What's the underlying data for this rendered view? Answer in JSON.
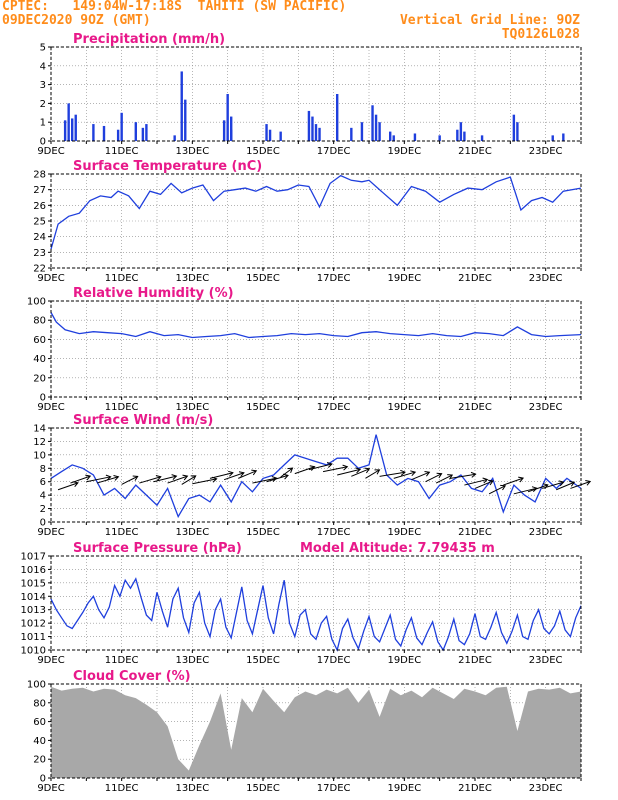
{
  "header": {
    "line1_left": "CPTEC:   149:04W-17:18S  TAHITI (SW PACIFIC)",
    "line2_left": "09DEC2020 9OZ (GMT)",
    "line2_right": "Vertical Grid Line: 9OZ",
    "line3_right": "TQ0126L028"
  },
  "colors": {
    "line": "#1f3fdd",
    "bar": "#1f3fdd",
    "cloud": "#a8a8a8",
    "title": "#e8198a",
    "header": "#ff8c1a"
  },
  "chart_data": [
    {
      "id": "precip",
      "type": "bar",
      "title": "Precipitation (mm/h)",
      "x_ticks": [
        "9DEC",
        "11DEC",
        "13DEC",
        "15DEC",
        "17DEC",
        "19DEC",
        "21DEC",
        "23DEC"
      ],
      "ylim": [
        0,
        5
      ],
      "y_ticks": [
        "0",
        "1",
        "2",
        "3",
        "4",
        "5"
      ],
      "values": [
        [
          0.4,
          1.1
        ],
        [
          0.5,
          2.0
        ],
        [
          0.6,
          1.2
        ],
        [
          0.7,
          1.4
        ],
        [
          1.2,
          0.9
        ],
        [
          1.5,
          0.8
        ],
        [
          1.9,
          0.6
        ],
        [
          2.0,
          1.5
        ],
        [
          2.4,
          1.0
        ],
        [
          2.6,
          0.7
        ],
        [
          2.7,
          0.9
        ],
        [
          3.5,
          0.3
        ],
        [
          3.7,
          3.7
        ],
        [
          3.8,
          2.2
        ],
        [
          4.9,
          1.1
        ],
        [
          5.0,
          2.5
        ],
        [
          5.1,
          1.3
        ],
        [
          5.1,
          0.6
        ],
        [
          6.1,
          0.9
        ],
        [
          6.2,
          0.6
        ],
        [
          6.5,
          0.5
        ],
        [
          7.3,
          1.6
        ],
        [
          7.4,
          1.3
        ],
        [
          7.5,
          0.9
        ],
        [
          7.6,
          0.7
        ],
        [
          8.1,
          2.5
        ],
        [
          8.5,
          0.7
        ],
        [
          8.8,
          1.0
        ],
        [
          9.1,
          1.9
        ],
        [
          9.2,
          1.4
        ],
        [
          9.3,
          1.0
        ],
        [
          9.6,
          0.5
        ],
        [
          9.7,
          0.3
        ],
        [
          10.3,
          0.4
        ],
        [
          11.0,
          0.3
        ],
        [
          11.5,
          0.6
        ],
        [
          11.6,
          1.0
        ],
        [
          11.7,
          0.5
        ],
        [
          12.2,
          0.3
        ],
        [
          13.1,
          1.4
        ],
        [
          13.2,
          1.0
        ],
        [
          14.2,
          0.3
        ],
        [
          14.5,
          0.4
        ]
      ]
    },
    {
      "id": "temp",
      "type": "line",
      "title": "Surface Temperature (nC)",
      "x_ticks": [
        "9DEC",
        "11DEC",
        "13DEC",
        "15DEC",
        "17DEC",
        "19DEC",
        "21DEC",
        "23DEC"
      ],
      "ylim": [
        22,
        28
      ],
      "y_ticks": [
        "22",
        "23",
        "24",
        "25",
        "26",
        "27",
        "28"
      ],
      "x": [
        0,
        0.2,
        0.5,
        0.8,
        1.1,
        1.4,
        1.7,
        1.9,
        2.2,
        2.5,
        2.8,
        3.1,
        3.4,
        3.7,
        4.0,
        4.3,
        4.6,
        4.9,
        5.2,
        5.5,
        5.8,
        6.1,
        6.4,
        6.7,
        7.0,
        7.3,
        7.6,
        7.9,
        8.2,
        8.5,
        8.8,
        9.0,
        9.4,
        9.8,
        10.2,
        10.6,
        11.0,
        11.4,
        11.8,
        12.2,
        12.6,
        13.0,
        13.3,
        13.6,
        13.9,
        14.2,
        14.5,
        15.0
      ],
      "values": [
        23.2,
        24.8,
        25.3,
        25.5,
        26.3,
        26.6,
        26.5,
        26.9,
        26.6,
        25.8,
        26.9,
        26.7,
        27.4,
        26.8,
        27.1,
        27.3,
        26.3,
        26.9,
        27.0,
        27.1,
        26.9,
        27.2,
        26.9,
        27.0,
        27.3,
        27.2,
        25.9,
        27.4,
        27.9,
        27.6,
        27.5,
        27.6,
        26.8,
        26.0,
        27.2,
        26.9,
        26.2,
        26.7,
        27.1,
        27.0,
        27.5,
        27.8,
        25.7,
        26.3,
        26.5,
        26.2,
        26.9,
        27.1
      ]
    },
    {
      "id": "rh",
      "type": "line",
      "title": "Relative Humidity (%)",
      "x_ticks": [
        "9DEC",
        "11DEC",
        "13DEC",
        "15DEC",
        "17DEC",
        "19DEC",
        "21DEC",
        "23DEC"
      ],
      "ylim": [
        0,
        100
      ],
      "y_ticks": [
        "0",
        "20",
        "40",
        "60",
        "80",
        "100"
      ],
      "x": [
        0,
        0.15,
        0.4,
        0.8,
        1.2,
        1.6,
        2.0,
        2.4,
        2.8,
        3.2,
        3.6,
        4.0,
        4.4,
        4.8,
        5.2,
        5.6,
        6.0,
        6.4,
        6.8,
        7.2,
        7.6,
        8.0,
        8.4,
        8.8,
        9.2,
        9.6,
        10.0,
        10.4,
        10.8,
        11.2,
        11.6,
        12.0,
        12.4,
        12.8,
        13.2,
        13.6,
        14.0,
        14.4,
        15.0
      ],
      "values": [
        88,
        78,
        70,
        66,
        68,
        67,
        66,
        63,
        68,
        64,
        65,
        62,
        63,
        64,
        66,
        62,
        63,
        64,
        66,
        65,
        66,
        64,
        63,
        67,
        68,
        66,
        65,
        64,
        66,
        64,
        63,
        67,
        66,
        64,
        73,
        65,
        63,
        64,
        65
      ]
    },
    {
      "id": "wind",
      "type": "line",
      "title": "Surface Wind (m/s)",
      "x_ticks": [
        "9DEC",
        "11DEC",
        "13DEC",
        "15DEC",
        "17DEC",
        "19DEC",
        "21DEC",
        "23DEC"
      ],
      "ylim": [
        0,
        14
      ],
      "y_ticks": [
        "0",
        "2",
        "4",
        "6",
        "8",
        "10",
        "12",
        "14"
      ],
      "x": [
        0,
        0.3,
        0.6,
        0.9,
        1.2,
        1.5,
        1.8,
        2.1,
        2.4,
        2.7,
        3.0,
        3.3,
        3.6,
        3.9,
        4.2,
        4.5,
        4.8,
        5.1,
        5.4,
        5.7,
        6.0,
        6.3,
        6.6,
        6.9,
        7.2,
        7.5,
        7.8,
        8.1,
        8.4,
        8.7,
        9.0,
        9.2,
        9.5,
        9.8,
        10.1,
        10.4,
        10.7,
        11.0,
        11.3,
        11.6,
        11.9,
        12.2,
        12.5,
        12.8,
        13.1,
        13.4,
        13.7,
        14.0,
        14.3,
        14.6,
        15.0
      ],
      "values": [
        6.5,
        7.5,
        8.5,
        8.0,
        7.0,
        4.0,
        5.0,
        3.5,
        5.5,
        4.0,
        2.5,
        5.0,
        0.8,
        3.5,
        4.0,
        3.0,
        5.5,
        3.0,
        6.0,
        4.5,
        6.5,
        7.0,
        8.5,
        10.0,
        9.5,
        9.0,
        8.5,
        9.5,
        9.5,
        8.0,
        8.5,
        13.0,
        7.0,
        5.5,
        6.5,
        6.0,
        3.5,
        5.5,
        6.0,
        7.0,
        5.0,
        4.5,
        6.5,
        1.5,
        5.5,
        4.0,
        3.0,
        6.5,
        5.0,
        6.5,
        5.0
      ],
      "arrows": [
        [
          0.2,
          4.8,
          225
        ],
        [
          0.55,
          5.8,
          225
        ],
        [
          1.0,
          6.0,
          210
        ],
        [
          1.3,
          5.8,
          220
        ],
        [
          2.0,
          5.6,
          235
        ],
        [
          2.5,
          5.8,
          220
        ],
        [
          2.9,
          6.0,
          215
        ],
        [
          3.3,
          5.8,
          225
        ],
        [
          3.7,
          5.6,
          240
        ],
        [
          4.0,
          5.7,
          210
        ],
        [
          4.5,
          6.5,
          215
        ],
        [
          4.9,
          6.3,
          225
        ],
        [
          5.3,
          6.5,
          230
        ],
        [
          5.7,
          5.8,
          210
        ],
        [
          6.1,
          6.0,
          220
        ],
        [
          6.5,
          6.7,
          245
        ],
        [
          6.9,
          7.2,
          225
        ],
        [
          7.3,
          7.8,
          215
        ],
        [
          7.7,
          7.5,
          210
        ],
        [
          8.1,
          7.0,
          215
        ],
        [
          8.5,
          6.8,
          230
        ],
        [
          8.9,
          6.5,
          240
        ],
        [
          9.3,
          6.8,
          205
        ],
        [
          9.7,
          6.5,
          220
        ],
        [
          10.2,
          6.3,
          230
        ],
        [
          10.6,
          6.0,
          235
        ],
        [
          10.9,
          5.8,
          235
        ],
        [
          11.3,
          6.5,
          205
        ],
        [
          11.7,
          5.5,
          215
        ],
        [
          12.0,
          5.0,
          230
        ],
        [
          12.4,
          4.2,
          235
        ],
        [
          12.8,
          5.5,
          225
        ],
        [
          13.1,
          4.2,
          215
        ],
        [
          13.5,
          4.5,
          225
        ],
        [
          13.9,
          5.0,
          220
        ],
        [
          14.3,
          4.8,
          230
        ],
        [
          14.7,
          5.0,
          225
        ]
      ]
    },
    {
      "id": "pressure",
      "type": "line",
      "title": "Surface Pressure (hPa)",
      "subtitle": "Model Altitude: 7.79435 m",
      "x_ticks": [
        "9DEC",
        "11DEC",
        "13DEC",
        "15DEC",
        "17DEC",
        "19DEC",
        "21DEC",
        "23DEC"
      ],
      "ylim": [
        1010,
        1017
      ],
      "y_ticks": [
        "1010",
        "1011",
        "1012",
        "1013",
        "1014",
        "1015",
        "1016",
        "1017"
      ],
      "x": [
        0,
        0.15,
        0.3,
        0.45,
        0.6,
        0.75,
        0.9,
        1.05,
        1.2,
        1.35,
        1.5,
        1.65,
        1.8,
        1.95,
        2.1,
        2.25,
        2.4,
        2.55,
        2.7,
        2.85,
        3.0,
        3.15,
        3.3,
        3.45,
        3.6,
        3.75,
        3.9,
        4.05,
        4.2,
        4.35,
        4.5,
        4.65,
        4.8,
        4.95,
        5.1,
        5.25,
        5.4,
        5.55,
        5.7,
        5.85,
        6.0,
        6.15,
        6.3,
        6.45,
        6.6,
        6.75,
        6.9,
        7.05,
        7.2,
        7.35,
        7.5,
        7.65,
        7.8,
        7.95,
        8.1,
        8.25,
        8.4,
        8.55,
        8.7,
        8.85,
        9.0,
        9.15,
        9.3,
        9.45,
        9.6,
        9.75,
        9.9,
        10.05,
        10.2,
        10.35,
        10.5,
        10.65,
        10.8,
        10.95,
        11.1,
        11.25,
        11.4,
        11.55,
        11.7,
        11.85,
        12.0,
        12.15,
        12.3,
        12.45,
        12.6,
        12.75,
        12.9,
        13.05,
        13.2,
        13.35,
        13.5,
        13.65,
        13.8,
        13.95,
        14.1,
        14.25,
        14.4,
        14.55,
        14.7,
        14.85,
        15.0
      ],
      "values": [
        1013.8,
        1013.0,
        1012.4,
        1011.8,
        1011.6,
        1012.2,
        1012.8,
        1013.5,
        1014.0,
        1013.0,
        1012.4,
        1013.2,
        1014.8,
        1014.0,
        1015.2,
        1014.6,
        1015.3,
        1013.9,
        1012.6,
        1012.2,
        1014.3,
        1012.9,
        1011.7,
        1013.8,
        1014.6,
        1012.4,
        1011.3,
        1013.5,
        1014.3,
        1012.0,
        1011.0,
        1013.0,
        1013.8,
        1011.7,
        1010.9,
        1012.8,
        1014.7,
        1012.2,
        1011.2,
        1013.0,
        1014.8,
        1012.4,
        1011.2,
        1013.4,
        1015.2,
        1012.0,
        1011.0,
        1012.6,
        1013.0,
        1011.2,
        1010.8,
        1012.0,
        1012.5,
        1010.8,
        1010.0,
        1011.6,
        1012.3,
        1010.9,
        1010.1,
        1011.4,
        1012.5,
        1011.0,
        1010.6,
        1011.6,
        1012.6,
        1010.8,
        1010.3,
        1011.5,
        1012.4,
        1010.9,
        1010.4,
        1011.3,
        1012.1,
        1010.6,
        1010.0,
        1011.0,
        1012.3,
        1010.7,
        1010.4,
        1011.2,
        1012.7,
        1011.0,
        1010.8,
        1011.7,
        1012.8,
        1011.3,
        1010.5,
        1011.4,
        1012.6,
        1011.0,
        1010.8,
        1012.2,
        1013.0,
        1011.6,
        1011.2,
        1011.8,
        1012.9,
        1011.5,
        1011.0,
        1012.4,
        1013.3
      ]
    },
    {
      "id": "cloud",
      "type": "area",
      "title": "Cloud Cover (%)",
      "x_ticks": [
        "9DEC",
        "11DEC",
        "13DEC",
        "15DEC",
        "17DEC",
        "19DEC",
        "21DEC",
        "23DEC"
      ],
      "ylim": [
        0,
        100
      ],
      "y_ticks": [
        "0",
        "20",
        "40",
        "60",
        "80",
        "100"
      ],
      "x": [
        0,
        0.3,
        0.6,
        0.9,
        1.2,
        1.5,
        1.8,
        2.1,
        2.4,
        2.7,
        3.0,
        3.3,
        3.6,
        3.9,
        4.2,
        4.5,
        4.8,
        5.1,
        5.4,
        5.7,
        6.0,
        6.3,
        6.6,
        6.9,
        7.2,
        7.5,
        7.8,
        8.1,
        8.4,
        8.7,
        9.0,
        9.3,
        9.6,
        9.9,
        10.2,
        10.5,
        10.8,
        11.1,
        11.4,
        11.7,
        12.0,
        12.3,
        12.6,
        12.9,
        13.2,
        13.5,
        13.8,
        14.1,
        14.4,
        14.7,
        15.0
      ],
      "values": [
        97,
        93,
        95,
        96,
        92,
        95,
        94,
        88,
        85,
        78,
        70,
        55,
        20,
        8,
        35,
        60,
        90,
        30,
        85,
        70,
        95,
        82,
        70,
        86,
        92,
        88,
        94,
        90,
        96,
        80,
        94,
        65,
        95,
        88,
        93,
        86,
        96,
        90,
        84,
        95,
        92,
        88,
        96,
        97,
        50,
        92,
        95,
        94,
        96,
        90,
        92
      ]
    }
  ]
}
